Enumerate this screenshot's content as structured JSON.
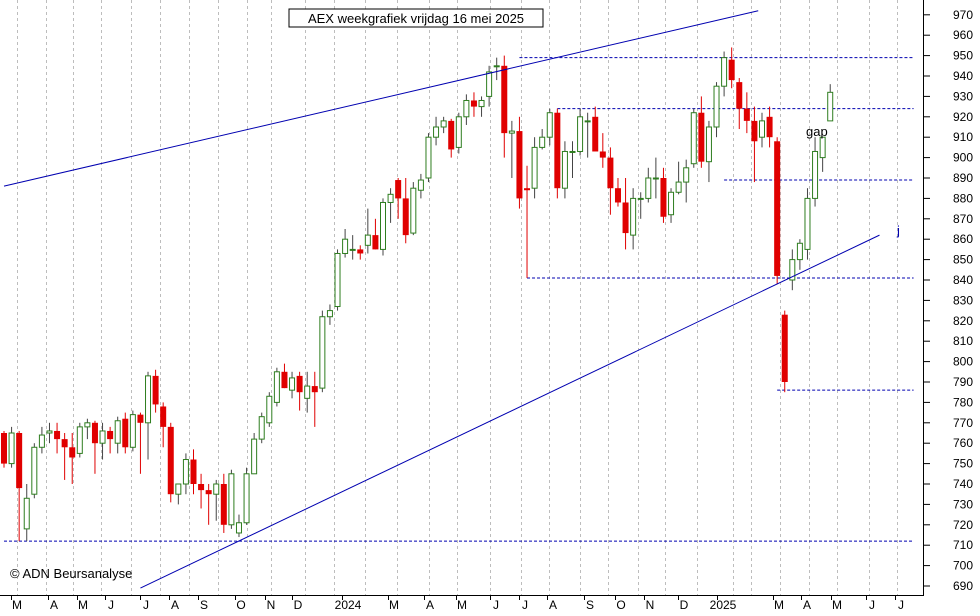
{
  "chart_data": {
    "type": "candlestick",
    "title": "AEX weekgrafiek vrijdag 16 mei 2025",
    "copyright": "© ADN Beursanalyse",
    "annotations": {
      "gap": "gap",
      "j": "j"
    },
    "ylim": [
      690,
      970
    ],
    "y_ticks": [
      690,
      700,
      710,
      720,
      730,
      740,
      750,
      760,
      770,
      780,
      790,
      800,
      810,
      820,
      830,
      840,
      850,
      860,
      870,
      880,
      890,
      900,
      910,
      920,
      930,
      940,
      950,
      960,
      970
    ],
    "x_tick_labels": [
      "M",
      "A",
      "M",
      "J",
      "J",
      "A",
      "S",
      "O",
      "N",
      "D",
      "2024",
      "M",
      "A",
      "M",
      "J",
      "J",
      "A",
      "S",
      "O",
      "N",
      "D",
      "2025",
      "M",
      "A",
      "M",
      "J",
      "J"
    ],
    "colors": {
      "up_candle": "#2e7d1f",
      "down_candle": "#e00000",
      "trendline": "#0000b0",
      "level_line": "#0000b0",
      "axis": "#000000"
    },
    "horizontal_levels": [
      {
        "y": 712,
        "x_start_week": 0,
        "x_end_week": 120
      },
      {
        "y": 949,
        "x_start_week": 68,
        "x_end_week": 120
      },
      {
        "y": 924,
        "x_start_week": 73,
        "x_end_week": 120
      },
      {
        "y": 889,
        "x_start_week": 95,
        "x_end_week": 120
      },
      {
        "y": 841,
        "x_start_week": 69,
        "x_end_week": 120
      },
      {
        "y": 786,
        "x_start_week": 102,
        "x_end_week": 120
      }
    ],
    "trendlines": [
      {
        "x1_week": 0,
        "y1": 886,
        "x2_week": 99.5,
        "y2": 972
      },
      {
        "x1_week": 18,
        "y1": 689,
        "x2_week": 115.5,
        "y2": 862
      }
    ],
    "candles": [
      {
        "o": 765,
        "h": 766,
        "l": 748,
        "c": 750
      },
      {
        "o": 750,
        "h": 768,
        "l": 748,
        "c": 765
      },
      {
        "o": 765,
        "h": 766,
        "l": 712,
        "c": 738
      },
      {
        "o": 718,
        "h": 740,
        "l": 712,
        "c": 733
      },
      {
        "o": 735,
        "h": 760,
        "l": 733,
        "c": 758
      },
      {
        "o": 758,
        "h": 768,
        "l": 755,
        "c": 764
      },
      {
        "o": 765,
        "h": 770,
        "l": 760,
        "c": 766
      },
      {
        "o": 766,
        "h": 770,
        "l": 755,
        "c": 762
      },
      {
        "o": 762,
        "h": 765,
        "l": 742,
        "c": 758
      },
      {
        "o": 758,
        "h": 765,
        "l": 740,
        "c": 753
      },
      {
        "o": 755,
        "h": 770,
        "l": 753,
        "c": 768
      },
      {
        "o": 768,
        "h": 772,
        "l": 762,
        "c": 770
      },
      {
        "o": 770,
        "h": 771,
        "l": 745,
        "c": 760
      },
      {
        "o": 760,
        "h": 770,
        "l": 752,
        "c": 766
      },
      {
        "o": 766,
        "h": 768,
        "l": 755,
        "c": 762
      },
      {
        "o": 760,
        "h": 773,
        "l": 755,
        "c": 771
      },
      {
        "o": 772,
        "h": 775,
        "l": 755,
        "c": 758
      },
      {
        "o": 758,
        "h": 776,
        "l": 756,
        "c": 774
      },
      {
        "o": 774,
        "h": 775,
        "l": 745,
        "c": 770
      },
      {
        "o": 770,
        "h": 795,
        "l": 752,
        "c": 793
      },
      {
        "o": 793,
        "h": 796,
        "l": 775,
        "c": 779
      },
      {
        "o": 778,
        "h": 780,
        "l": 758,
        "c": 768
      },
      {
        "o": 768,
        "h": 770,
        "l": 731,
        "c": 735
      },
      {
        "o": 735,
        "h": 740,
        "l": 730,
        "c": 740
      },
      {
        "o": 740,
        "h": 755,
        "l": 735,
        "c": 752
      },
      {
        "o": 752,
        "h": 757,
        "l": 735,
        "c": 740
      },
      {
        "o": 740,
        "h": 745,
        "l": 728,
        "c": 737
      },
      {
        "o": 737,
        "h": 740,
        "l": 720,
        "c": 735
      },
      {
        "o": 735,
        "h": 742,
        "l": 722,
        "c": 740
      },
      {
        "o": 740,
        "h": 745,
        "l": 716,
        "c": 720
      },
      {
        "o": 720,
        "h": 747,
        "l": 718,
        "c": 745
      },
      {
        "o": 716,
        "h": 725,
        "l": 714,
        "c": 721
      },
      {
        "o": 721,
        "h": 748,
        "l": 720,
        "c": 745
      },
      {
        "o": 745,
        "h": 765,
        "l": 745,
        "c": 762
      },
      {
        "o": 762,
        "h": 775,
        "l": 760,
        "c": 773
      },
      {
        "o": 770,
        "h": 785,
        "l": 768,
        "c": 783
      },
      {
        "o": 780,
        "h": 797,
        "l": 778,
        "c": 795
      },
      {
        "o": 795,
        "h": 799,
        "l": 787,
        "c": 787
      },
      {
        "o": 786,
        "h": 795,
        "l": 782,
        "c": 792
      },
      {
        "o": 793,
        "h": 795,
        "l": 776,
        "c": 785
      },
      {
        "o": 782,
        "h": 795,
        "l": 775,
        "c": 788
      },
      {
        "o": 788,
        "h": 795,
        "l": 768,
        "c": 785
      },
      {
        "o": 787,
        "h": 825,
        "l": 785,
        "c": 822
      },
      {
        "o": 822,
        "h": 828,
        "l": 818,
        "c": 825
      },
      {
        "o": 827,
        "h": 855,
        "l": 825,
        "c": 853
      },
      {
        "o": 853,
        "h": 865,
        "l": 851,
        "c": 860
      },
      {
        "o": 855,
        "h": 862,
        "l": 850,
        "c": 855
      },
      {
        "o": 855,
        "h": 857,
        "l": 850,
        "c": 853
      },
      {
        "o": 857,
        "h": 875,
        "l": 853,
        "c": 862
      },
      {
        "o": 862,
        "h": 870,
        "l": 855,
        "c": 855
      },
      {
        "o": 855,
        "h": 880,
        "l": 852,
        "c": 878
      },
      {
        "o": 878,
        "h": 885,
        "l": 868,
        "c": 882
      },
      {
        "o": 889,
        "h": 890,
        "l": 870,
        "c": 880
      },
      {
        "o": 880,
        "h": 890,
        "l": 858,
        "c": 862
      },
      {
        "o": 863,
        "h": 888,
        "l": 862,
        "c": 885
      },
      {
        "o": 884,
        "h": 892,
        "l": 880,
        "c": 889
      },
      {
        "o": 890,
        "h": 912,
        "l": 888,
        "c": 910
      },
      {
        "o": 910,
        "h": 920,
        "l": 906,
        "c": 915
      },
      {
        "o": 915,
        "h": 920,
        "l": 912,
        "c": 918
      },
      {
        "o": 918,
        "h": 919,
        "l": 900,
        "c": 904
      },
      {
        "o": 905,
        "h": 922,
        "l": 902,
        "c": 920
      },
      {
        "o": 920,
        "h": 931,
        "l": 916,
        "c": 928
      },
      {
        "o": 928,
        "h": 932,
        "l": 920,
        "c": 925
      },
      {
        "o": 925,
        "h": 930,
        "l": 920,
        "c": 928
      },
      {
        "o": 930,
        "h": 945,
        "l": 925,
        "c": 942
      },
      {
        "o": 945,
        "h": 949,
        "l": 938,
        "c": 945
      },
      {
        "o": 945,
        "h": 950,
        "l": 900,
        "c": 912
      },
      {
        "o": 912,
        "h": 918,
        "l": 890,
        "c": 913
      },
      {
        "o": 913,
        "h": 920,
        "l": 875,
        "c": 880
      },
      {
        "o": 885,
        "h": 896,
        "l": 841,
        "c": 884
      },
      {
        "o": 885,
        "h": 910,
        "l": 880,
        "c": 905
      },
      {
        "o": 905,
        "h": 914,
        "l": 904,
        "c": 910
      },
      {
        "o": 910,
        "h": 924,
        "l": 906,
        "c": 922
      },
      {
        "o": 922,
        "h": 924,
        "l": 880,
        "c": 885
      },
      {
        "o": 885,
        "h": 908,
        "l": 880,
        "c": 903
      },
      {
        "o": 903,
        "h": 908,
        "l": 890,
        "c": 903
      },
      {
        "o": 903,
        "h": 924,
        "l": 901,
        "c": 920
      },
      {
        "o": 918,
        "h": 922,
        "l": 900,
        "c": 918
      },
      {
        "o": 920,
        "h": 925,
        "l": 905,
        "c": 903
      },
      {
        "o": 903,
        "h": 912,
        "l": 895,
        "c": 900
      },
      {
        "o": 900,
        "h": 905,
        "l": 872,
        "c": 885
      },
      {
        "o": 885,
        "h": 890,
        "l": 876,
        "c": 878
      },
      {
        "o": 878,
        "h": 890,
        "l": 855,
        "c": 863
      },
      {
        "o": 862,
        "h": 885,
        "l": 855,
        "c": 880
      },
      {
        "o": 880,
        "h": 883,
        "l": 870,
        "c": 880
      },
      {
        "o": 880,
        "h": 895,
        "l": 878,
        "c": 890
      },
      {
        "o": 890,
        "h": 900,
        "l": 880,
        "c": 890
      },
      {
        "o": 890,
        "h": 895,
        "l": 868,
        "c": 871
      },
      {
        "o": 872,
        "h": 885,
        "l": 868,
        "c": 883
      },
      {
        "o": 883,
        "h": 898,
        "l": 882,
        "c": 888
      },
      {
        "o": 888,
        "h": 899,
        "l": 878,
        "c": 895
      },
      {
        "o": 897,
        "h": 924,
        "l": 895,
        "c": 922
      },
      {
        "o": 922,
        "h": 930,
        "l": 895,
        "c": 898
      },
      {
        "o": 898,
        "h": 918,
        "l": 888,
        "c": 915
      },
      {
        "o": 915,
        "h": 937,
        "l": 910,
        "c": 935
      },
      {
        "o": 935,
        "h": 952,
        "l": 930,
        "c": 949
      },
      {
        "o": 948,
        "h": 954,
        "l": 934,
        "c": 938
      },
      {
        "o": 937,
        "h": 939,
        "l": 914,
        "c": 924
      },
      {
        "o": 924,
        "h": 932,
        "l": 912,
        "c": 918
      },
      {
        "o": 918,
        "h": 925,
        "l": 888,
        "c": 908
      },
      {
        "o": 910,
        "h": 922,
        "l": 905,
        "c": 918
      },
      {
        "o": 920,
        "h": 925,
        "l": 905,
        "c": 910
      },
      {
        "o": 908,
        "h": 910,
        "l": 838,
        "c": 842
      },
      {
        "o": 823,
        "h": 825,
        "l": 785,
        "c": 790
      },
      {
        "o": 840,
        "h": 855,
        "l": 835,
        "c": 850
      },
      {
        "o": 850,
        "h": 860,
        "l": 845,
        "c": 858
      },
      {
        "o": 855,
        "h": 885,
        "l": 850,
        "c": 880
      },
      {
        "o": 880,
        "h": 910,
        "l": 876,
        "c": 903
      },
      {
        "o": 900,
        "h": 910,
        "l": 893,
        "c": 910
      },
      {
        "o": 918,
        "h": 936,
        "l": 918,
        "c": 932
      }
    ]
  }
}
